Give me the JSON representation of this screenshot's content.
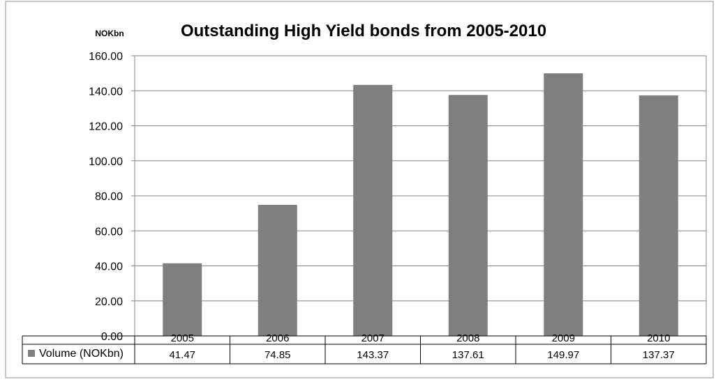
{
  "chart_data": {
    "type": "bar",
    "title": "Outstanding High Yield bonds from 2005-2010",
    "ylabel": "NOKbn",
    "xlabel": "",
    "categories": [
      "2005",
      "2006",
      "2007",
      "2008",
      "2009",
      "2010"
    ],
    "ylim": [
      0,
      160
    ],
    "y_ticks": [
      "0.00",
      "20.00",
      "40.00",
      "60.00",
      "80.00",
      "100.00",
      "120.00",
      "140.00",
      "160.00"
    ],
    "grid": true,
    "legend": "data-table",
    "series": [
      {
        "name": "Volume (NOKbn)",
        "values": [
          41.47,
          74.85,
          143.37,
          137.61,
          149.97,
          137.37
        ],
        "value_labels": [
          "41.47",
          "74.85",
          "143.37",
          "137.61",
          "149.97",
          "137.37"
        ],
        "color": "#7f7f7f"
      }
    ]
  }
}
